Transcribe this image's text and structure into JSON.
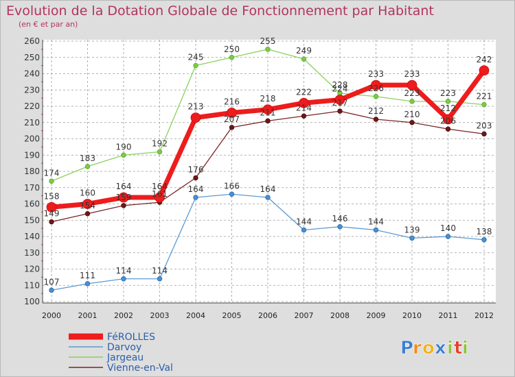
{
  "chart_data": {
    "type": "line",
    "title": "Evolution de la Dotation Globale de Fonctionnement par Habitant",
    "subtitle": "(en € et par an)",
    "categories": [
      "2000",
      "2001",
      "2002",
      "2003",
      "2004",
      "2005",
      "2006",
      "2007",
      "2008",
      "2009",
      "2010",
      "2011",
      "2012"
    ],
    "ylim": [
      100,
      260
    ],
    "ytick_step": 10,
    "grid": true,
    "series": [
      {
        "name": "Vienne-en-Val",
        "color": "#7a2424",
        "values": [
          149,
          154,
          159,
          161,
          176,
          207,
          211,
          214,
          217,
          212,
          210,
          206,
          203
        ]
      },
      {
        "name": "Darvoy",
        "color": "#5b9ad2",
        "values": [
          107,
          111,
          114,
          114,
          164,
          166,
          164,
          144,
          146,
          144,
          139,
          140,
          138
        ]
      },
      {
        "name": "Jargeau",
        "color": "#88d15a",
        "values": [
          174,
          183,
          190,
          192,
          245,
          250,
          255,
          249,
          228,
          226,
          223,
          223,
          221
        ]
      },
      {
        "name": "FéROLLES",
        "color": "#ee1c1c",
        "values": [
          158,
          160,
          164,
          164,
          213,
          216,
          218,
          222,
          224,
          233,
          233,
          212,
          242
        ]
      }
    ],
    "legend": [
      "FéROLLES",
      "Darvoy",
      "Jargeau",
      "Vienne-en-Val"
    ],
    "legend_position": "bottom-left"
  },
  "logo": {
    "text": "Proxiti",
    "letters": [
      {
        "char": "P",
        "color": "#3b7fd4"
      },
      {
        "char": "r",
        "color": "#f28a1a"
      },
      {
        "char": "o",
        "color": "#f2b21a"
      },
      {
        "char": "x",
        "color": "#3b7fd4"
      },
      {
        "char": "i",
        "color": "#8cc43c"
      },
      {
        "char": "t",
        "color": "#e8402a"
      },
      {
        "char": "i",
        "color": "#8cc43c"
      }
    ]
  }
}
